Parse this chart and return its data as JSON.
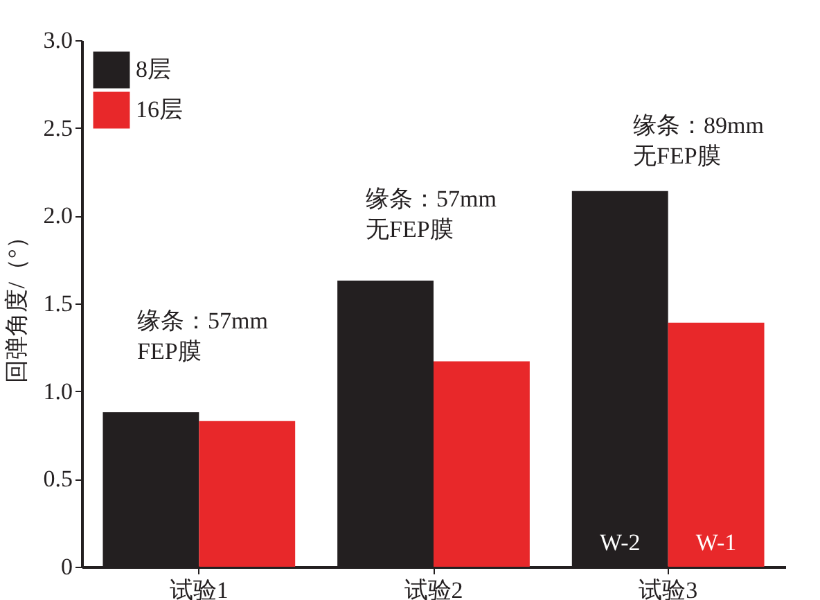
{
  "chart_data": {
    "type": "bar",
    "ylabel": "回弹角度/（°）",
    "categories": [
      "试验1",
      "试验2",
      "试验3"
    ],
    "series": [
      {
        "name": "8层",
        "color": "#231f20",
        "values": [
          0.88,
          1.63,
          2.14
        ],
        "value_labels": [
          null,
          null,
          "W-2"
        ]
      },
      {
        "name": "16层",
        "color": "#e8282a",
        "values": [
          0.83,
          1.17,
          1.39
        ],
        "value_labels": [
          null,
          null,
          "W-1"
        ]
      }
    ],
    "ylim": [
      0,
      3.0
    ],
    "yticks": [
      {
        "value": 0,
        "label": "0"
      },
      {
        "value": 0.5,
        "label": "0.5"
      },
      {
        "value": 1,
        "label": "1.0"
      },
      {
        "value": 1.5,
        "label": "1.5"
      },
      {
        "value": 2,
        "label": "2.0"
      },
      {
        "value": 2.5,
        "label": "2.5"
      },
      {
        "value": 3,
        "label": "3.0"
      }
    ],
    "grid": false,
    "legend": "top left",
    "annotations": [
      "缘条：57mm\nFEP膜",
      "缘条：57mm\n无FEP膜",
      "缘条：89mm\n无FEP膜"
    ]
  }
}
